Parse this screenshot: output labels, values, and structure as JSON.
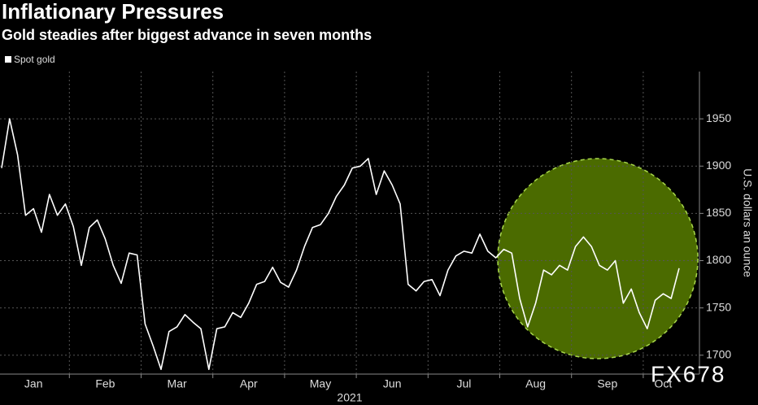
{
  "chart_data": {
    "type": "line",
    "title": "Inflationary Pressures",
    "subtitle": "Gold steadies after biggest advance in seven months",
    "xlabel": "2021",
    "ylabel": "U.S. dollars an ounce",
    "watermark": "FX678",
    "categories": [
      "Jan",
      null,
      null,
      null,
      null,
      null,
      null,
      null,
      null,
      "Feb",
      null,
      null,
      null,
      null,
      null,
      null,
      null,
      null,
      "Mar",
      null,
      null,
      null,
      null,
      null,
      null,
      null,
      null,
      "Apr",
      null,
      null,
      null,
      null,
      null,
      null,
      null,
      null,
      "May",
      null,
      null,
      null,
      null,
      null,
      null,
      null,
      null,
      "Jun",
      null,
      null,
      null,
      null,
      null,
      null,
      null,
      null,
      "Jul",
      null,
      null,
      null,
      null,
      null,
      null,
      null,
      null,
      "Aug",
      null,
      null,
      null,
      null,
      null,
      null,
      null,
      null,
      "Sep",
      null,
      null,
      null,
      null,
      null,
      null,
      null,
      null,
      "Oct",
      null,
      null,
      null,
      null
    ],
    "series": [
      {
        "name": "Spot gold",
        "color": "#ffffff",
        "values": [
          1898,
          1950,
          1912,
          1848,
          1855,
          1830,
          1870,
          1848,
          1860,
          1836,
          1795,
          1835,
          1843,
          1823,
          1795,
          1776,
          1808,
          1806,
          1733,
          1710,
          1685,
          1725,
          1730,
          1743,
          1735,
          1728,
          1685,
          1728,
          1730,
          1745,
          1740,
          1755,
          1775,
          1778,
          1793,
          1777,
          1772,
          1790,
          1815,
          1835,
          1838,
          1850,
          1868,
          1880,
          1898,
          1900,
          1908,
          1870,
          1895,
          1880,
          1860,
          1775,
          1768,
          1778,
          1780,
          1763,
          1790,
          1805,
          1810,
          1808,
          1828,
          1810,
          1803,
          1812,
          1808,
          1760,
          1730,
          1755,
          1790,
          1785,
          1795,
          1790,
          1815,
          1825,
          1815,
          1795,
          1790,
          1800,
          1755,
          1770,
          1745,
          1728,
          1758,
          1765,
          1760,
          1792
        ]
      }
    ],
    "ylim": [
      1680,
      2000
    ],
    "yticks": [
      1700,
      1750,
      1800,
      1850,
      1900,
      1950
    ],
    "grid": true
  }
}
